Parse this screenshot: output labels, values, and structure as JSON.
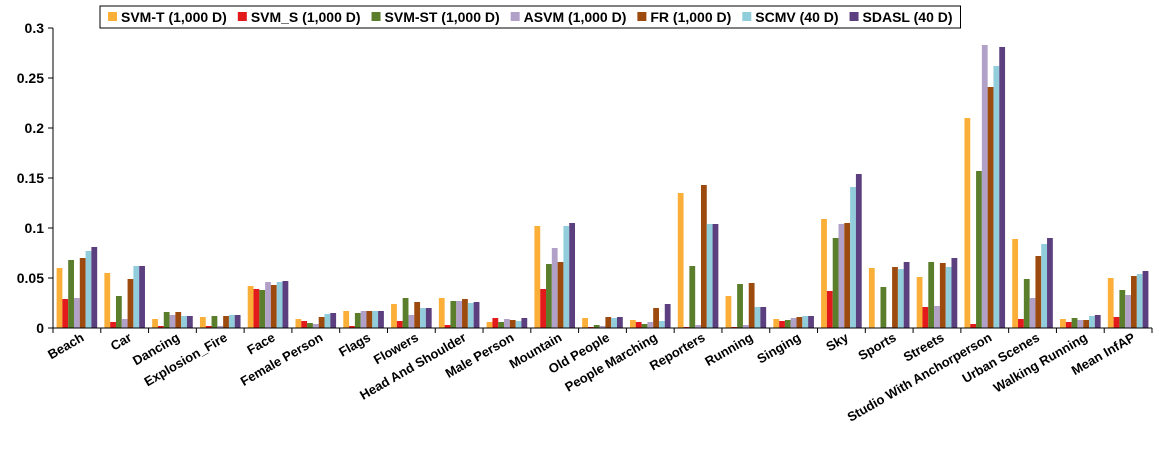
{
  "chart_data": {
    "type": "bar",
    "title": "",
    "xlabel": "",
    "ylabel": "",
    "ylim": [
      0,
      0.3
    ],
    "yticks": [
      "0",
      "0.05",
      "0.1",
      "0.15",
      "0.2",
      "0.25",
      "0.3"
    ],
    "grid": false,
    "legend_position": "top",
    "categories": [
      "Beach",
      "Car",
      "Dancing",
      "Explosion_Fire",
      "Face",
      "Female Person",
      "Flags",
      "Flowers",
      "Head And Shoulder",
      "Male Person",
      "Mountain",
      "Old People",
      "People Marching",
      "Reporters",
      "Running",
      "Singing",
      "Sky",
      "Sports",
      "Streets",
      "Studio With Anchorperson",
      "Urban Scenes",
      "Walking Running",
      "Mean InfAP"
    ],
    "series": [
      {
        "name": "SVM-T (1,000 D)",
        "color": "#FBAE38",
        "values": [
          0.06,
          0.055,
          0.009,
          0.011,
          0.042,
          0.009,
          0.017,
          0.024,
          0.03,
          0.006,
          0.102,
          0.01,
          0.008,
          0.135,
          0.032,
          0.009,
          0.109,
          0.06,
          0.051,
          0.21,
          0.089,
          0.009,
          0.05
        ]
      },
      {
        "name": "SVM_S (1,000 D)",
        "color": "#E31A1C",
        "values": [
          0.029,
          0.006,
          0.002,
          0.002,
          0.039,
          0.007,
          0.002,
          0.007,
          0.003,
          0.01,
          0.039,
          0.001,
          0.006,
          0.001,
          0.001,
          0.007,
          0.037,
          0.0,
          0.021,
          0.004,
          0.009,
          0.006,
          0.011
        ]
      },
      {
        "name": "SVM-ST (1,000 D)",
        "color": "#5A7E2C",
        "values": [
          0.068,
          0.032,
          0.016,
          0.012,
          0.038,
          0.005,
          0.015,
          0.03,
          0.027,
          0.006,
          0.064,
          0.003,
          0.004,
          0.062,
          0.044,
          0.008,
          0.09,
          0.041,
          0.066,
          0.157,
          0.049,
          0.01,
          0.038
        ]
      },
      {
        "name": "ASVM (1,000 D)",
        "color": "#B1A0C7",
        "values": [
          0.03,
          0.009,
          0.013,
          0.002,
          0.046,
          0.004,
          0.017,
          0.013,
          0.027,
          0.009,
          0.08,
          0.002,
          0.006,
          0.003,
          0.003,
          0.01,
          0.104,
          0.001,
          0.022,
          0.283,
          0.03,
          0.008,
          0.033
        ]
      },
      {
        "name": "FR (1,000 D)",
        "color": "#9C4A0E",
        "values": [
          0.07,
          0.049,
          0.016,
          0.012,
          0.043,
          0.011,
          0.017,
          0.026,
          0.029,
          0.008,
          0.066,
          0.011,
          0.02,
          0.143,
          0.045,
          0.011,
          0.105,
          0.061,
          0.065,
          0.241,
          0.072,
          0.008,
          0.052
        ]
      },
      {
        "name": "SCMV (40 D)",
        "color": "#92CDDC",
        "values": [
          0.077,
          0.062,
          0.012,
          0.013,
          0.046,
          0.014,
          0.017,
          0.02,
          0.025,
          0.007,
          0.102,
          0.01,
          0.007,
          0.104,
          0.021,
          0.012,
          0.141,
          0.059,
          0.061,
          0.262,
          0.084,
          0.012,
          0.054
        ]
      },
      {
        "name": "SDASL (40 D)",
        "color": "#5B3F7E",
        "values": [
          0.081,
          0.062,
          0.012,
          0.013,
          0.047,
          0.015,
          0.017,
          0.02,
          0.026,
          0.01,
          0.105,
          0.011,
          0.024,
          0.104,
          0.021,
          0.012,
          0.154,
          0.066,
          0.07,
          0.281,
          0.09,
          0.013,
          0.057
        ]
      }
    ]
  }
}
